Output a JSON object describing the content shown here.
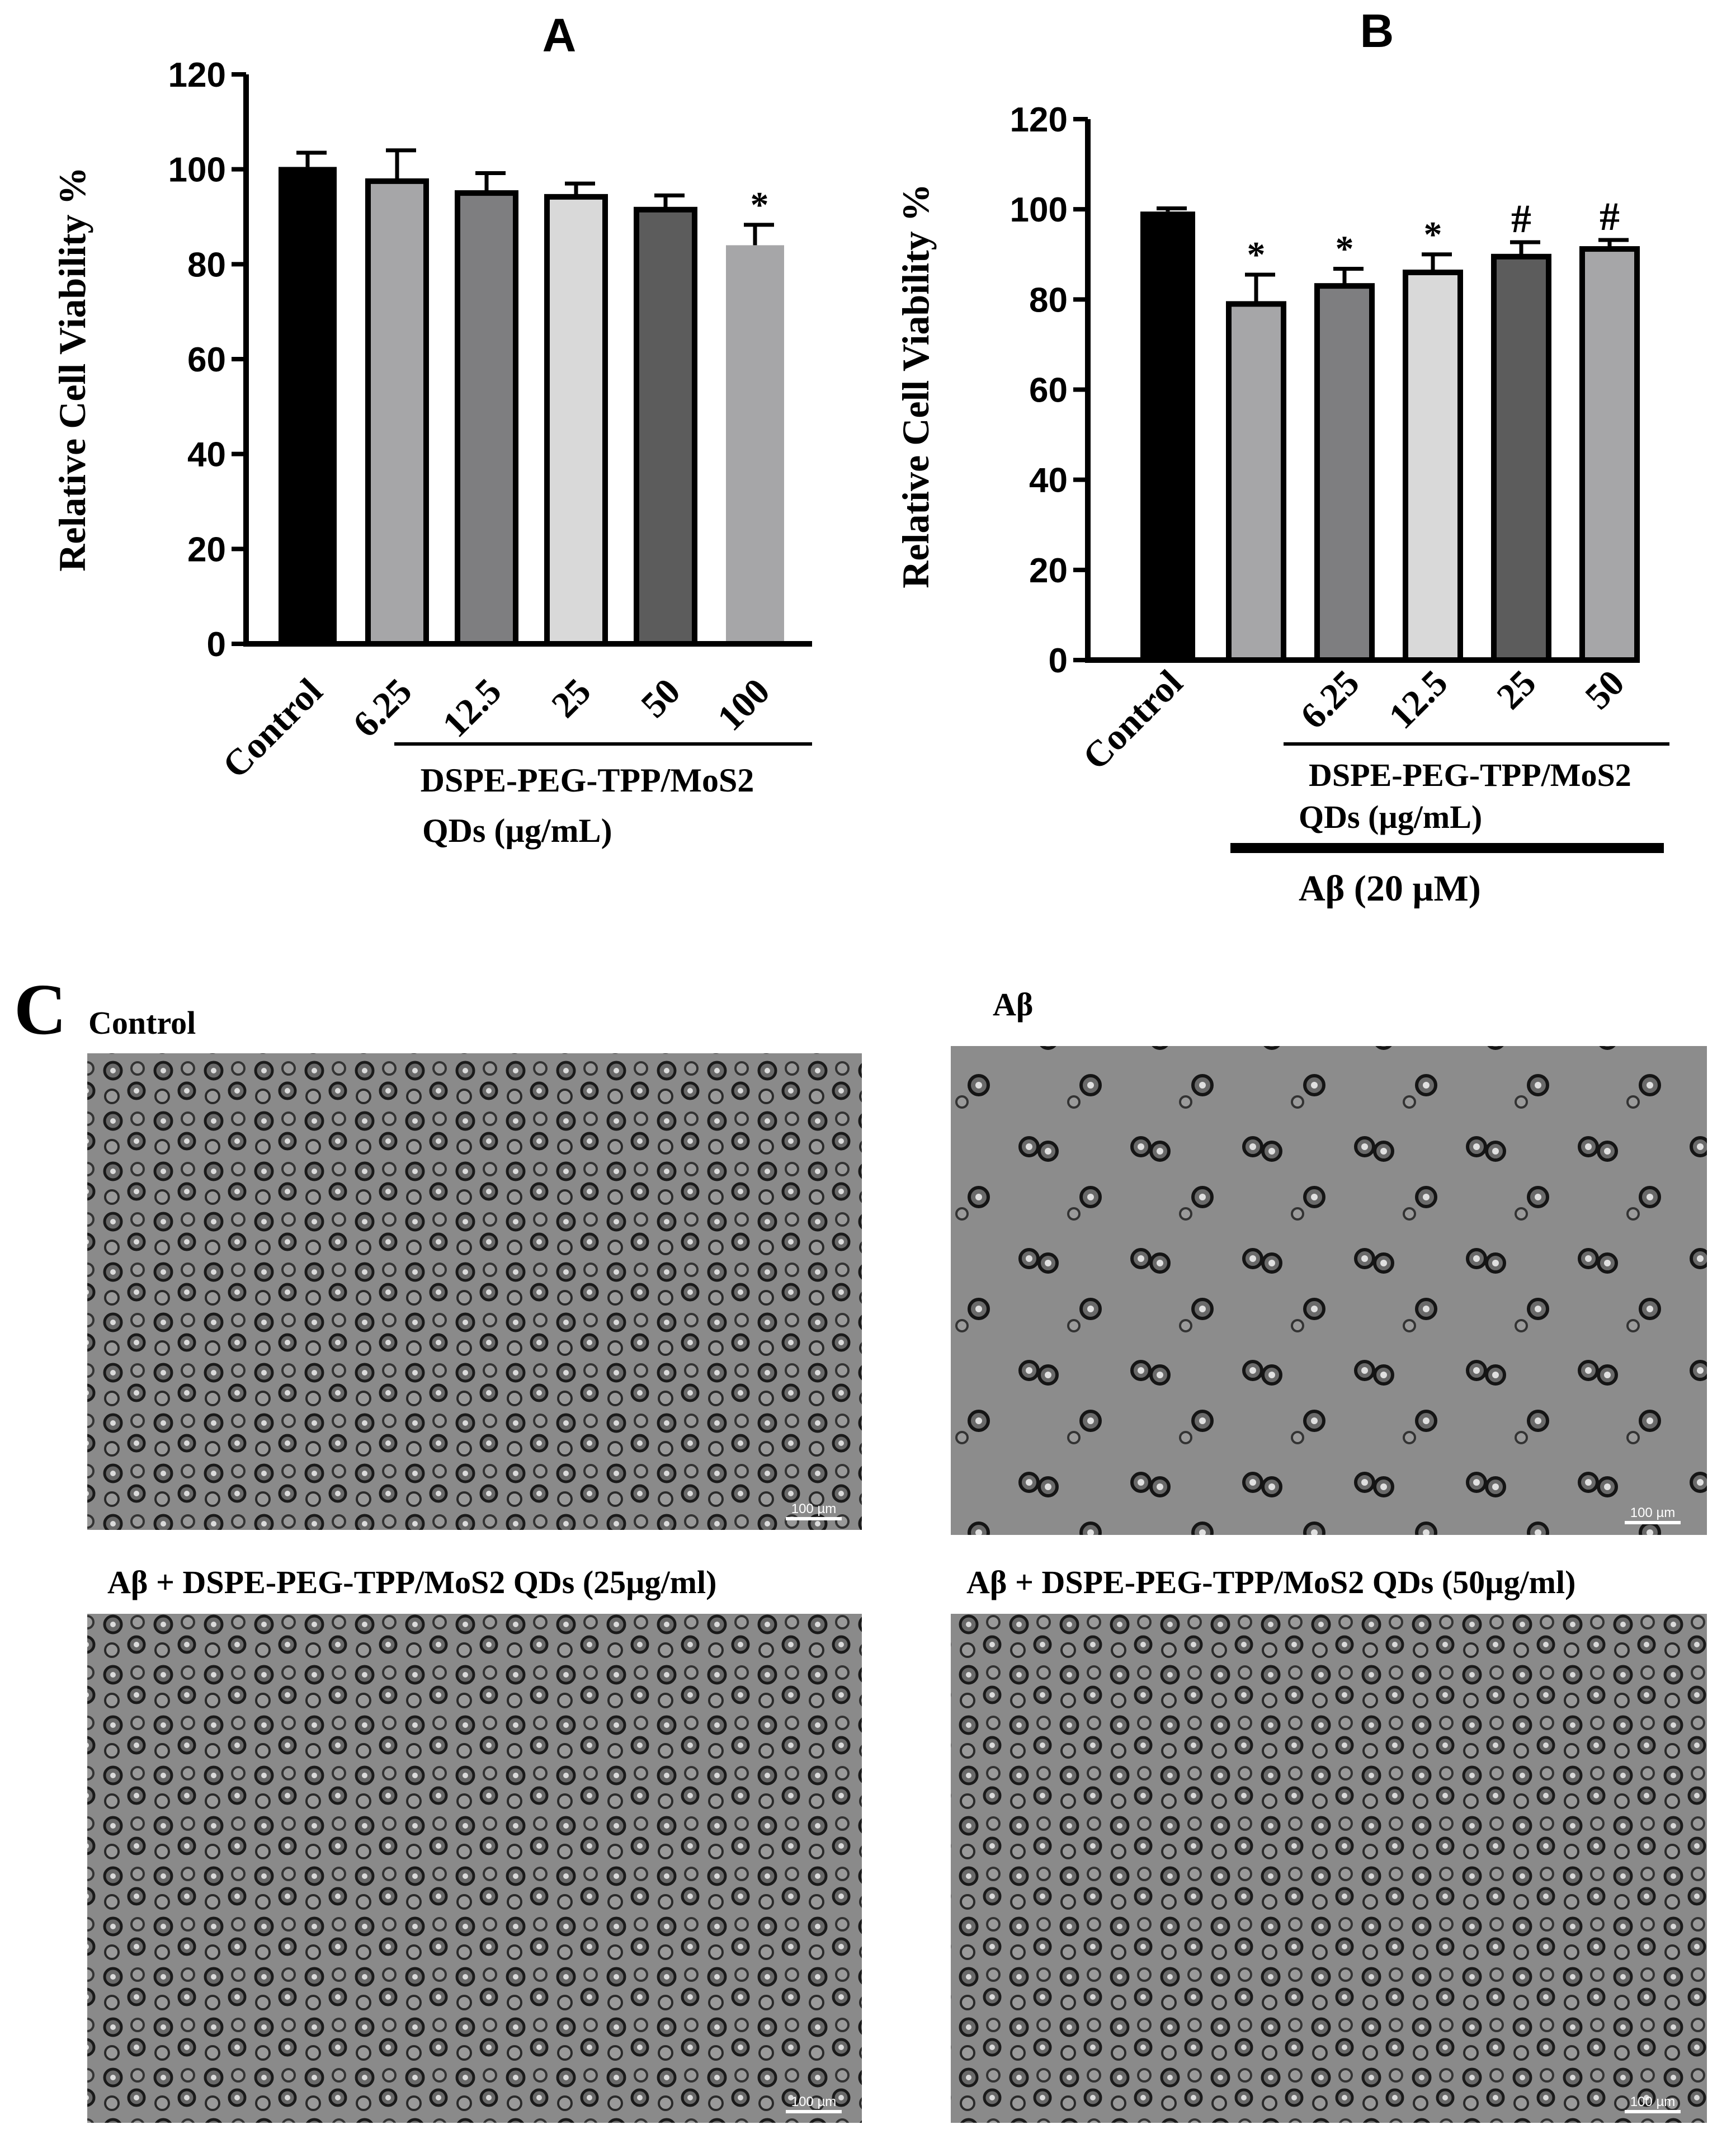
{
  "panels": {
    "A": "A",
    "B": "B",
    "C": "C"
  },
  "chart_data": [
    {
      "type": "bar",
      "panel": "A",
      "title": "",
      "ylabel": "Relative Cell Viability %",
      "xlabel": "",
      "ylim": [
        0,
        120
      ],
      "yticks": [
        0,
        20,
        40,
        60,
        80,
        100,
        120
      ],
      "categories": [
        "Control",
        "6.25",
        "12.5",
        "25",
        "50",
        "100"
      ],
      "values": [
        100.5,
        97.5,
        95.0,
        94.2,
        91.5,
        84.0
      ],
      "errors": [
        3.0,
        6.5,
        4.2,
        2.8,
        3.0,
        4.3
      ],
      "significance": [
        "",
        "",
        "",
        "",
        "",
        "*"
      ],
      "colors": [
        "#000000",
        "#a6a6a8",
        "#7e7e80",
        "#d9d9d9",
        "#5c5c5c",
        "#a6a6a8"
      ],
      "outlined": [
        false,
        true,
        true,
        true,
        true,
        false
      ],
      "bracket": {
        "label1": "DSPE-PEG-TPP/MoS2",
        "label2": "QDs (µg/mL)"
      }
    },
    {
      "type": "bar",
      "panel": "B",
      "title": "",
      "ylabel": "Relative Cell Viability %",
      "xlabel": "",
      "ylim": [
        0,
        120
      ],
      "yticks": [
        0,
        20,
        40,
        60,
        80,
        100,
        120
      ],
      "categories": [
        "Control",
        "",
        "6.25",
        "12.5",
        "25",
        "50"
      ],
      "values": [
        99.5,
        79.0,
        83.0,
        86.0,
        89.5,
        91.2
      ],
      "errors": [
        0.7,
        6.5,
        3.8,
        4.0,
        3.2,
        2.0
      ],
      "significance": [
        "",
        "*",
        "*",
        "*",
        "#",
        "#"
      ],
      "colors": [
        "#000000",
        "#a6a6a8",
        "#7e7e80",
        "#d9d9d9",
        "#5c5c5c",
        "#a6a6a8"
      ],
      "outlined": [
        false,
        true,
        true,
        true,
        true,
        true
      ],
      "bracket": {
        "label1": "DSPE-PEG-TPP/MoS2",
        "label2": "QDs (µg/mL)"
      },
      "bracket2": {
        "label": "Aβ  (20 µM)"
      }
    }
  ],
  "micrographs": {
    "control": {
      "title": "Control",
      "scale": "100 µm"
    },
    "abeta": {
      "title": "Aβ",
      "scale": "100 µm"
    },
    "qd25": {
      "title": "Aβ + DSPE-PEG-TPP/MoS2 QDs (25µg/ml)",
      "scale": "100 µm"
    },
    "qd50": {
      "title": "Aβ + DSPE-PEG-TPP/MoS2 QDs (50µg/ml)",
      "scale": "100 µm"
    }
  }
}
